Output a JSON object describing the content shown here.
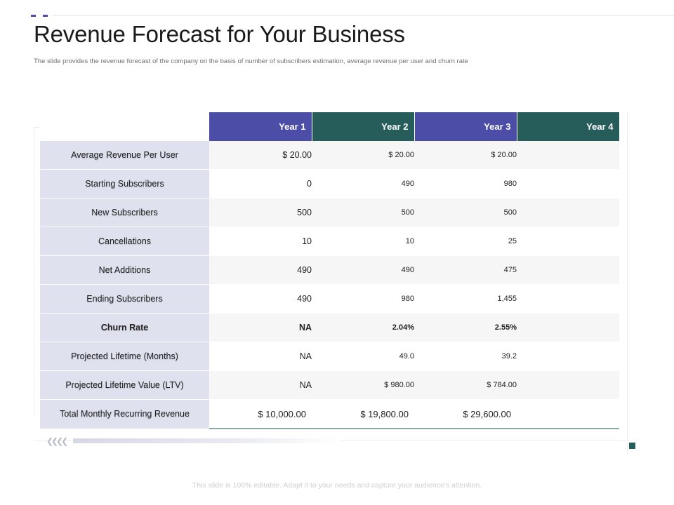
{
  "slide": {
    "title": "Revenue Forecast for Your Business",
    "subtitle": "The slide provides the revenue forecast of the company on the basis of number of subscribers estimation, average revenue per user and churn rate",
    "footer": "This slide is 100% editable. Adapt it to your needs and capture your audience's attention."
  },
  "colors": {
    "header_purple": "#4c4da6",
    "header_teal": "#265d5b",
    "label_background": "#dfe1ee"
  },
  "table": {
    "columns": [
      "Year 1",
      "Year 2",
      "Year 3",
      "Year 4"
    ],
    "rows": [
      {
        "label": "Average Revenue Per User",
        "bold": false,
        "values": [
          "$ 20.00",
          "$ 20.00",
          "$ 20.00",
          ""
        ]
      },
      {
        "label": "Starting Subscribers",
        "bold": false,
        "values": [
          "0",
          "490",
          "980",
          ""
        ]
      },
      {
        "label": "New Subscribers",
        "bold": false,
        "values": [
          "500",
          "500",
          "500",
          ""
        ]
      },
      {
        "label": "Cancellations",
        "bold": false,
        "values": [
          "10",
          "10",
          "25",
          ""
        ]
      },
      {
        "label": "Net Additions",
        "bold": false,
        "values": [
          "490",
          "490",
          "475",
          ""
        ]
      },
      {
        "label": "Ending Subscribers",
        "bold": false,
        "values": [
          "490",
          "980",
          "1,455",
          ""
        ]
      },
      {
        "label": "Churn Rate",
        "bold": true,
        "values": [
          "NA",
          "2.04%",
          "2.55%",
          ""
        ]
      },
      {
        "label": "Projected Lifetime (Months)",
        "bold": false,
        "values": [
          "NA",
          "49.0",
          "39.2",
          ""
        ]
      },
      {
        "label": "Projected Lifetime  Value (LTV)",
        "bold": false,
        "values": [
          "NA",
          "$ 980.00",
          "$ 784.00",
          ""
        ]
      },
      {
        "label": "Total Monthly Recurring Revenue",
        "bold": false,
        "values": [
          "$ 10,000.00",
          "$ 19,800.00",
          "$ 29,600.00",
          ""
        ]
      }
    ]
  }
}
